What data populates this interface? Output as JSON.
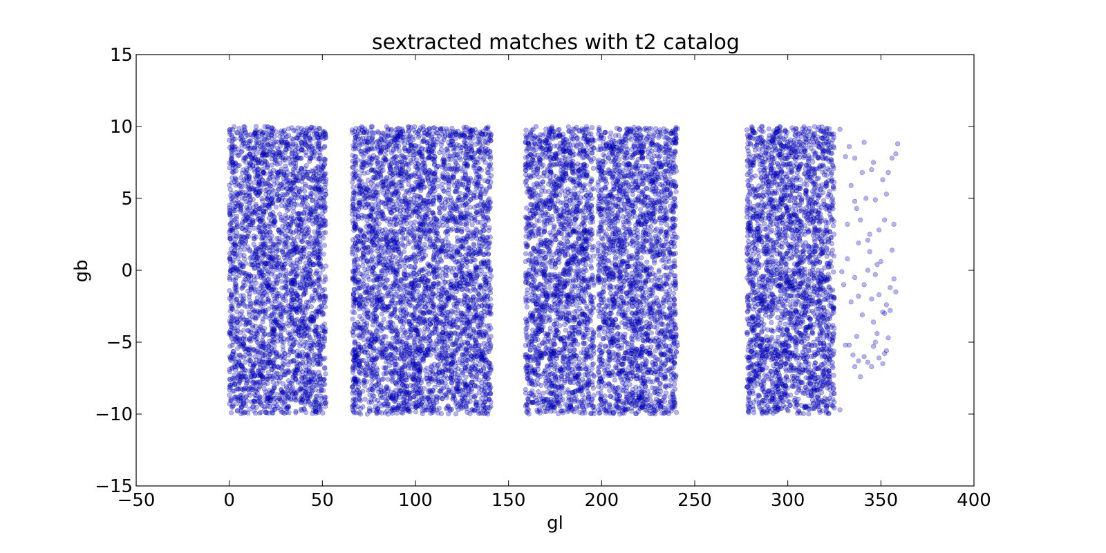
{
  "chart_data": {
    "type": "scatter",
    "title": "sextracted matches with t2 catalog",
    "xlabel": "gl",
    "ylabel": "gb",
    "xlim": [
      -50,
      400
    ],
    "ylim": [
      -15,
      15
    ],
    "xticks": [
      -50,
      0,
      50,
      100,
      150,
      200,
      250,
      300,
      350,
      400
    ],
    "yticks": [
      -15,
      -10,
      -5,
      0,
      5,
      10,
      15
    ],
    "xtick_labels": [
      "−50",
      "0",
      "50",
      "100",
      "150",
      "200",
      "250",
      "300",
      "350",
      "400"
    ],
    "ytick_labels": [
      "−15",
      "−10",
      "−5",
      "0",
      "5",
      "10",
      "15"
    ],
    "grid": false,
    "legend": "none",
    "marker_color": "#0000ff",
    "marker_edge_color": "#000000",
    "marker_alpha": 0.3,
    "dense_gl_bands": [
      [
        0,
        52
      ],
      [
        66,
        141
      ],
      [
        159,
        196
      ],
      [
        198,
        241
      ],
      [
        278,
        325
      ]
    ],
    "gb_range": [
      -10,
      10
    ],
    "sparse_points": [
      [
        328,
        9.8
      ],
      [
        331,
        7.9
      ],
      [
        333,
        8.6
      ],
      [
        334,
        5.9
      ],
      [
        336,
        7.8
      ],
      [
        337,
        4.3
      ],
      [
        339,
        3.5
      ],
      [
        341,
        8.9
      ],
      [
        342,
        5.0
      ],
      [
        343,
        2.1
      ],
      [
        344,
        1.3
      ],
      [
        346,
        7.5
      ],
      [
        347,
        4.9
      ],
      [
        348,
        0.4
      ],
      [
        349,
        2.8
      ],
      [
        351,
        6.3
      ],
      [
        352,
        3.5
      ],
      [
        353,
        5.3
      ],
      [
        354,
        6.8
      ],
      [
        356,
        7.8
      ],
      [
        357,
        3.2
      ],
      [
        358,
        8.1
      ],
      [
        359,
        8.8
      ],
      [
        329,
        -0.1
      ],
      [
        330,
        -1.0
      ],
      [
        332,
        0.8
      ],
      [
        334,
        -2.2
      ],
      [
        336,
        -0.5
      ],
      [
        338,
        -1.8
      ],
      [
        340,
        -3.1
      ],
      [
        341,
        -1.0
      ],
      [
        343,
        0.0
      ],
      [
        345,
        -2.0
      ],
      [
        346,
        -3.6
      ],
      [
        348,
        -4.4
      ],
      [
        349,
        -1.7
      ],
      [
        351,
        -2.9
      ],
      [
        352,
        -3.0
      ],
      [
        354,
        -4.7
      ],
      [
        355,
        -2.8
      ],
      [
        357,
        -0.6
      ],
      [
        358,
        -1.5
      ],
      [
        331,
        -5.2
      ],
      [
        333,
        -5.2
      ],
      [
        335,
        -5.9
      ],
      [
        336,
        -6.7
      ],
      [
        338,
        -6.3
      ],
      [
        339,
        -7.4
      ],
      [
        341,
        -6.0
      ],
      [
        343,
        -6.4
      ],
      [
        345,
        -6.7
      ],
      [
        347,
        -5.0
      ],
      [
        349,
        -6.1
      ],
      [
        351,
        -6.5
      ],
      [
        353,
        -5.6
      ],
      [
        328,
        -9.7
      ],
      [
        337,
        -4.6
      ],
      [
        346,
        -5.3
      ],
      [
        352,
        -5.8
      ],
      [
        356,
        1.4
      ],
      [
        340,
        6.8
      ],
      [
        344,
        2.5
      ],
      [
        350,
        0.6
      ],
      [
        355,
        -1.2
      ],
      [
        338,
        1.9
      ],
      [
        347,
        -0.3
      ],
      [
        353,
        -2.4
      ],
      [
        332,
        3.2
      ],
      [
        336,
        4.8
      ],
      [
        345,
        7.0
      ]
    ]
  }
}
